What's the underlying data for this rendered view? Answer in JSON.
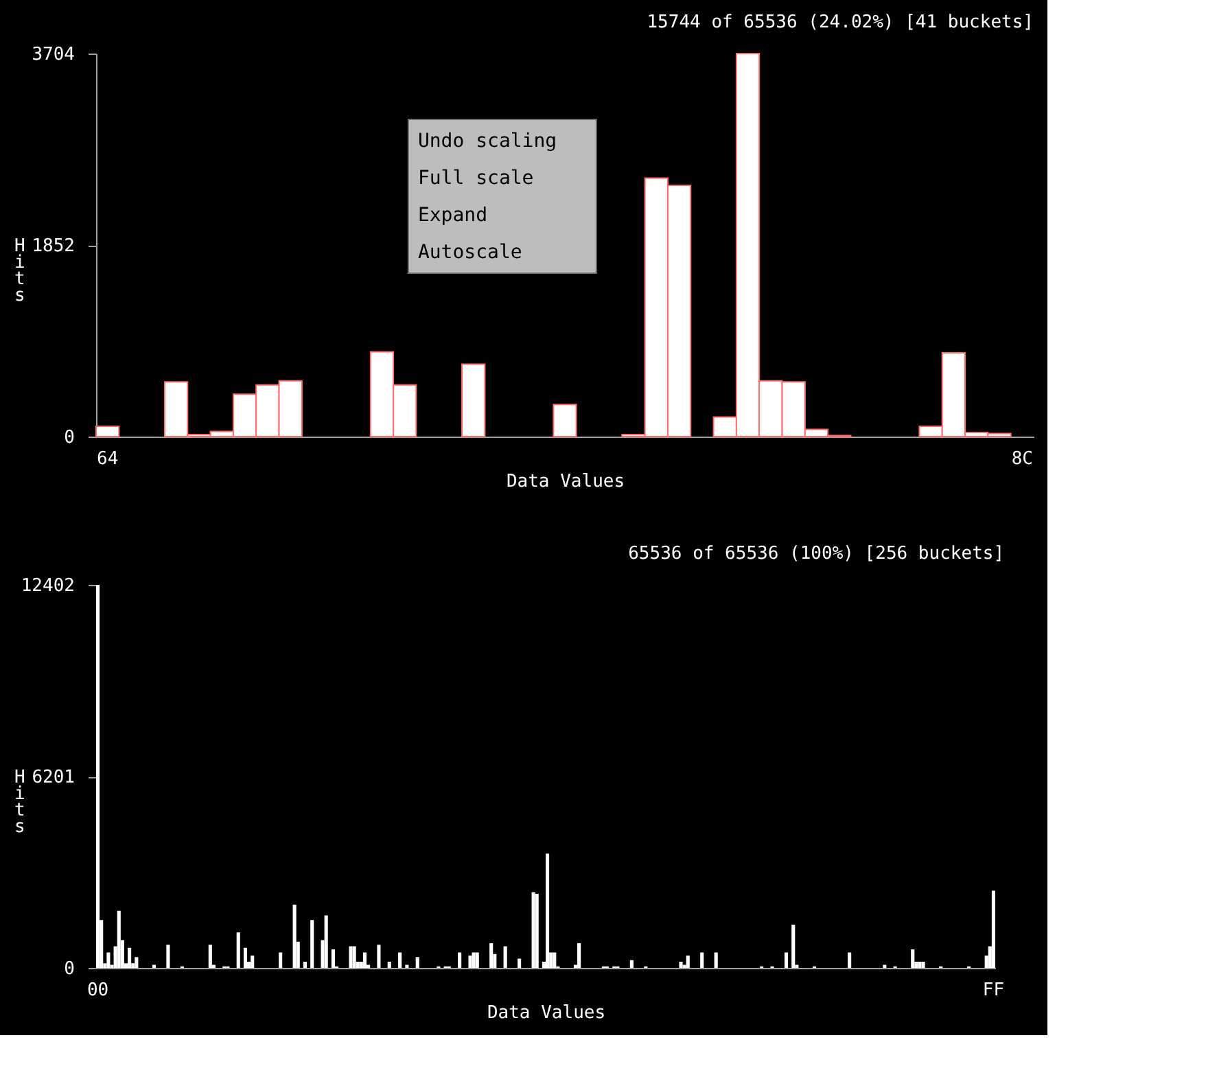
{
  "chart_data": [
    {
      "type": "bar",
      "title": "15744 of 65536 (24.02%) [41 buckets]",
      "xlabel": "Data Values",
      "ylabel": "Hits",
      "categories": [
        "64",
        null,
        null,
        null,
        null,
        null,
        null,
        null,
        null,
        null,
        null,
        null,
        null,
        null,
        null,
        null,
        null,
        null,
        null,
        null,
        null,
        null,
        null,
        null,
        null,
        null,
        null,
        null,
        null,
        null,
        null,
        null,
        null,
        null,
        null,
        null,
        null,
        null,
        null,
        null,
        "8C"
      ],
      "series": [
        {
          "color": "#ffffff",
          "values": [
            100,
            0,
            0,
            530,
            20,
            50,
            410,
            500,
            540,
            0,
            0,
            0,
            820,
            500,
            0,
            0,
            700,
            0,
            0,
            0,
            310,
            0,
            0,
            20,
            2500,
            2430,
            0,
            190,
            3704,
            540,
            530,
            70,
            10,
            0,
            0,
            0,
            100,
            810,
            40,
            30,
            0
          ]
        }
      ],
      "ylim": [
        0,
        3704
      ],
      "yticks": [
        0,
        1852,
        3704
      ],
      "grid": false,
      "annotations": [
        "Undo scaling",
        "Full scale",
        "Expand",
        "Autoscale"
      ]
    },
    {
      "type": "bar",
      "title": "65536 of 65536 (100%) [256 buckets]",
      "xlabel": "Data Values",
      "ylabel": "Hits",
      "categories": [
        "00",
        null,
        null,
        null,
        null,
        null,
        null,
        null,
        null,
        null,
        null,
        null,
        null,
        null,
        null,
        null,
        null,
        null,
        null,
        null,
        null,
        null,
        null,
        null,
        null,
        null,
        null,
        null,
        null,
        null,
        null,
        null,
        null,
        null,
        null,
        null,
        null,
        null,
        null,
        null,
        null,
        null,
        null,
        null,
        null,
        null,
        null,
        null,
        null,
        null,
        null,
        null,
        null,
        null,
        null,
        null,
        null,
        null,
        null,
        null,
        null,
        null,
        null,
        null,
        null,
        null,
        null,
        null,
        null,
        null,
        null,
        null,
        null,
        null,
        null,
        null,
        null,
        null,
        null,
        null,
        null,
        null,
        null,
        null,
        null,
        null,
        null,
        null,
        null,
        null,
        null,
        null,
        null,
        null,
        null,
        null,
        null,
        null,
        null,
        null,
        null,
        null,
        null,
        null,
        null,
        null,
        null,
        null,
        null,
        null,
        null,
        null,
        null,
        null,
        null,
        null,
        null,
        null,
        null,
        null,
        null,
        null,
        null,
        null,
        null,
        null,
        null,
        null,
        null,
        null,
        null,
        null,
        null,
        null,
        null,
        null,
        null,
        null,
        null,
        null,
        null,
        null,
        null,
        null,
        null,
        null,
        null,
        null,
        null,
        null,
        null,
        null,
        null,
        null,
        null,
        null,
        null,
        null,
        null,
        null,
        null,
        null,
        null,
        null,
        null,
        null,
        null,
        null,
        null,
        null,
        null,
        null,
        null,
        null,
        null,
        null,
        null,
        null,
        null,
        null,
        null,
        null,
        null,
        null,
        null,
        null,
        null,
        null,
        null,
        null,
        null,
        null,
        null,
        null,
        null,
        null,
        null,
        null,
        null,
        null,
        null,
        null,
        null,
        null,
        null,
        null,
        null,
        null,
        null,
        null,
        null,
        null,
        null,
        null,
        null,
        null,
        null,
        null,
        null,
        null,
        null,
        null,
        null,
        null,
        null,
        null,
        null,
        null,
        null,
        null,
        null,
        null,
        null,
        null,
        null,
        null,
        null,
        null,
        null,
        null,
        null,
        null,
        null,
        null,
        null,
        null,
        null,
        null,
        null,
        null,
        null,
        null,
        null,
        null,
        null,
        "FF"
      ],
      "series": [
        {
          "color": "#ffffff",
          "values": [
            12400,
            1550,
            150,
            500,
            100,
            700,
            1850,
            900,
            150,
            650,
            150,
            350,
            0,
            0,
            0,
            0,
            100,
            0,
            0,
            0,
            750,
            0,
            0,
            0,
            50,
            0,
            0,
            0,
            0,
            0,
            0,
            0,
            750,
            100,
            0,
            0,
            50,
            50,
            0,
            0,
            1150,
            0,
            650,
            200,
            400,
            0,
            0,
            0,
            0,
            0,
            0,
            0,
            500,
            0,
            0,
            0,
            2050,
            850,
            0,
            200,
            0,
            1550,
            0,
            0,
            900,
            1700,
            0,
            600,
            50,
            0,
            0,
            0,
            700,
            700,
            200,
            200,
            500,
            100,
            0,
            0,
            750,
            0,
            0,
            200,
            0,
            0,
            500,
            0,
            100,
            0,
            0,
            350,
            0,
            0,
            0,
            0,
            0,
            50,
            0,
            50,
            50,
            0,
            0,
            500,
            0,
            0,
            400,
            500,
            500,
            0,
            0,
            0,
            800,
            450,
            0,
            0,
            700,
            0,
            0,
            0,
            300,
            0,
            0,
            0,
            2450,
            2400,
            0,
            200,
            3700,
            500,
            500,
            50,
            0,
            0,
            0,
            0,
            100,
            800,
            0,
            0,
            0,
            0,
            0,
            0,
            50,
            50,
            0,
            50,
            50,
            0,
            0,
            0,
            250,
            0,
            0,
            0,
            50,
            0,
            0,
            0,
            0,
            0,
            0,
            0,
            0,
            0,
            200,
            100,
            400,
            0,
            0,
            0,
            500,
            0,
            0,
            0,
            500,
            0,
            0,
            0,
            0,
            0,
            0,
            0,
            0,
            0,
            0,
            0,
            0,
            50,
            0,
            0,
            50,
            0,
            0,
            0,
            500,
            0,
            1400,
            100,
            0,
            0,
            0,
            0,
            50,
            0,
            0,
            0,
            0,
            0,
            0,
            0,
            0,
            0,
            500,
            0,
            0,
            0,
            0,
            0,
            0,
            0,
            0,
            0,
            100,
            0,
            0,
            50,
            0,
            0,
            0,
            0,
            600,
            200,
            200,
            200,
            0,
            0,
            0,
            0,
            50,
            0,
            0,
            0,
            0,
            0,
            0,
            0,
            50,
            0,
            0,
            0,
            0,
            400,
            700,
            2500
          ]
        }
      ],
      "ylim": [
        0,
        12402
      ],
      "yticks": [
        0,
        6201,
        12402
      ],
      "grid": false
    }
  ]
}
